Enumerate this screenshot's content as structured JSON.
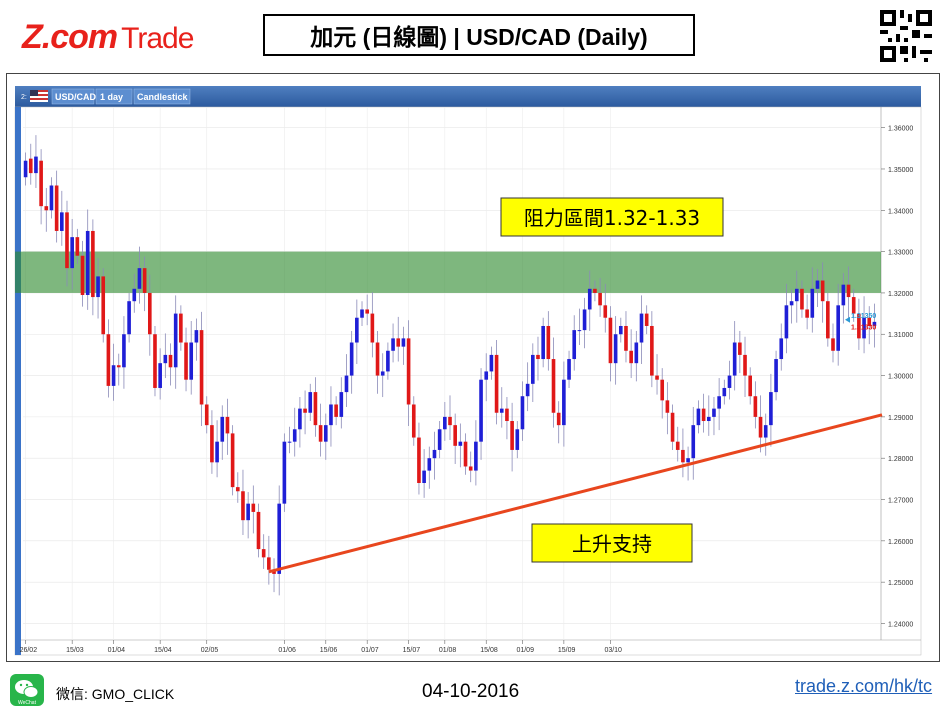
{
  "brand": {
    "logo_z": "Z.com",
    "logo_trade": "Trade"
  },
  "header": {
    "title": "加元 (日線圖) | USD/CAD  (Daily)"
  },
  "toolbar": {
    "panel": "2:",
    "symbol": "USD/CAD",
    "interval": "1 day",
    "chart_type": "Candlestick"
  },
  "annotations": {
    "resistance": "阻力區間1.32-1.33",
    "support": "上升支持"
  },
  "price_labels": {
    "ask": "1.31350",
    "bid": "1.31330"
  },
  "footer": {
    "wechat": "微信: GMO_CLICK",
    "date": "04-10-2016",
    "site": "trade.z.com/hk/tc"
  },
  "colors": {
    "up": "#1f1fd6",
    "down": "#e01818",
    "zone": "#2e8b2e",
    "trend": "#e8461e"
  },
  "chart_data": {
    "type": "candlestick",
    "title": "",
    "ylim": [
      1.236,
      1.365
    ],
    "yticks": [
      1.36,
      1.35,
      1.34,
      1.33,
      1.32,
      1.31,
      1.3,
      1.29,
      1.28,
      1.27,
      1.26,
      1.25,
      1.24
    ],
    "xticks": [
      "26/02",
      "15/03",
      "01/04",
      "15/04",
      "02/05",
      "01/06",
      "15/06",
      "01/07",
      "15/07",
      "01/08",
      "15/08",
      "01/09",
      "15/09",
      "03/10"
    ],
    "resistance_zone": [
      1.32,
      1.33
    ],
    "support_line": {
      "from": [
        0,
        1.2525
      ],
      "to": [
        163,
        1.2905
      ]
    },
    "closes": [
      1.352,
      1.349,
      1.353,
      1.341,
      1.34,
      1.346,
      1.335,
      1.3395,
      1.326,
      1.3335,
      1.329,
      1.3195,
      1.335,
      1.319,
      1.324,
      1.31,
      1.2975,
      1.3025,
      1.302,
      1.31,
      1.318,
      1.321,
      1.326,
      1.32,
      1.31,
      1.297,
      1.303,
      1.305,
      1.302,
      1.315,
      1.308,
      1.299,
      1.308,
      1.311,
      1.293,
      1.288,
      1.279,
      1.284,
      1.29,
      1.286,
      1.273,
      1.272,
      1.265,
      1.269,
      1.267,
      1.258,
      1.256,
      1.253,
      1.252,
      1.269,
      1.284,
      1.284,
      1.287,
      1.292,
      1.291,
      1.296,
      1.288,
      1.284,
      1.288,
      1.293,
      1.29,
      1.296,
      1.3,
      1.308,
      1.314,
      1.316,
      1.315,
      1.308,
      1.3,
      1.301,
      1.306,
      1.309,
      1.307,
      1.309,
      1.293,
      1.285,
      1.274,
      1.277,
      1.28,
      1.282,
      1.287,
      1.29,
      1.288,
      1.283,
      1.284,
      1.278,
      1.277,
      1.284,
      1.299,
      1.301,
      1.305,
      1.291,
      1.292,
      1.289,
      1.282,
      1.287,
      1.295,
      1.298,
      1.305,
      1.304,
      1.312,
      1.304,
      1.291,
      1.288,
      1.299,
      1.304,
      1.311,
      1.311,
      1.316,
      1.321,
      1.32,
      1.317,
      1.314,
      1.303,
      1.31,
      1.312,
      1.306,
      1.303,
      1.308,
      1.315,
      1.312,
      1.3,
      1.299,
      1.294,
      1.291,
      1.284,
      1.282,
      1.279,
      1.28,
      1.288,
      1.292,
      1.289,
      1.29,
      1.292,
      1.295,
      1.297,
      1.3,
      1.308,
      1.305,
      1.3,
      1.295,
      1.29,
      1.285,
      1.288,
      1.296,
      1.304,
      1.309,
      1.317,
      1.318,
      1.321,
      1.316,
      1.314,
      1.321,
      1.323,
      1.318,
      1.309,
      1.306,
      1.317,
      1.322,
      1.319,
      1.315,
      1.309,
      1.314,
      1.312,
      1.313
    ],
    "opens": [
      1.348,
      1.3525,
      1.349,
      1.352,
      1.341,
      1.34,
      1.346,
      1.335,
      1.3395,
      1.326,
      1.3335,
      1.329,
      1.3195,
      1.335,
      1.319,
      1.324,
      1.31,
      1.2975,
      1.3025,
      1.302,
      1.31,
      1.318,
      1.321,
      1.326,
      1.32,
      1.31,
      1.297,
      1.303,
      1.305,
      1.302,
      1.315,
      1.308,
      1.299,
      1.308,
      1.311,
      1.293,
      1.288,
      1.279,
      1.284,
      1.29,
      1.286,
      1.273,
      1.272,
      1.265,
      1.269,
      1.267,
      1.258,
      1.256,
      1.253,
      1.252,
      1.269,
      1.284,
      1.284,
      1.287,
      1.292,
      1.291,
      1.296,
      1.288,
      1.284,
      1.288,
      1.293,
      1.29,
      1.296,
      1.3,
      1.308,
      1.314,
      1.316,
      1.315,
      1.308,
      1.3,
      1.301,
      1.306,
      1.309,
      1.307,
      1.309,
      1.293,
      1.285,
      1.274,
      1.277,
      1.28,
      1.282,
      1.287,
      1.29,
      1.288,
      1.283,
      1.284,
      1.278,
      1.277,
      1.284,
      1.299,
      1.301,
      1.305,
      1.291,
      1.292,
      1.289,
      1.282,
      1.287,
      1.295,
      1.298,
      1.305,
      1.304,
      1.312,
      1.304,
      1.291,
      1.288,
      1.299,
      1.304,
      1.311,
      1.311,
      1.316,
      1.321,
      1.32,
      1.317,
      1.314,
      1.303,
      1.31,
      1.312,
      1.306,
      1.303,
      1.308,
      1.315,
      1.312,
      1.3,
      1.299,
      1.294,
      1.291,
      1.284,
      1.282,
      1.279,
      1.28,
      1.288,
      1.292,
      1.289,
      1.29,
      1.292,
      1.295,
      1.297,
      1.3,
      1.308,
      1.305,
      1.3,
      1.295,
      1.29,
      1.285,
      1.288,
      1.296,
      1.304,
      1.309,
      1.317,
      1.318,
      1.321,
      1.316,
      1.314,
      1.321,
      1.323,
      1.318,
      1.309,
      1.306,
      1.317,
      1.322,
      1.319,
      1.315,
      1.309,
      1.314,
      1.312
    ]
  }
}
